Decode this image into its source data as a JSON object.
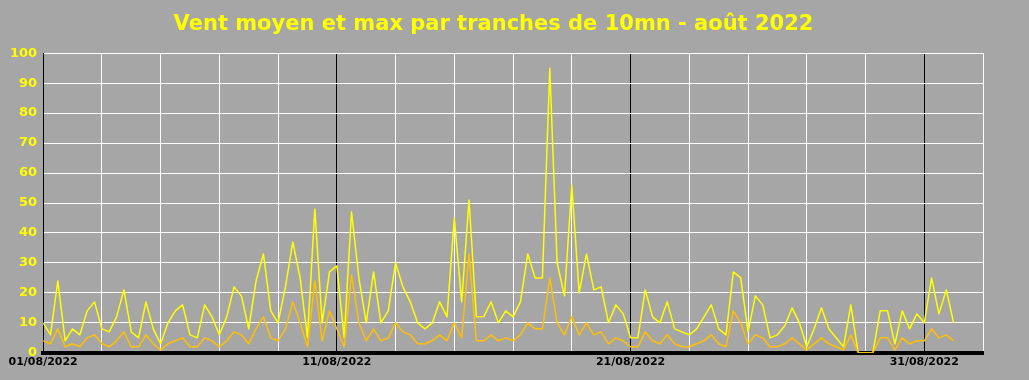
{
  "chart_data": {
    "type": "line",
    "title": "Vent moyen et max par tranches de 10mn - août 2022",
    "x": [
      "2022-08-01T00:00",
      "2022-08-01T06:00",
      "2022-08-01T12:00",
      "2022-08-01T18:00",
      "2022-08-02T00:00",
      "2022-08-02T06:00",
      "2022-08-02T12:00",
      "2022-08-02T18:00",
      "2022-08-03T00:00",
      "2022-08-03T06:00",
      "2022-08-03T12:00",
      "2022-08-03T18:00",
      "2022-08-04T00:00",
      "2022-08-04T06:00",
      "2022-08-04T12:00",
      "2022-08-04T18:00",
      "2022-08-05T00:00",
      "2022-08-05T06:00",
      "2022-08-05T12:00",
      "2022-08-05T18:00",
      "2022-08-06T00:00",
      "2022-08-06T06:00",
      "2022-08-06T12:00",
      "2022-08-06T18:00",
      "2022-08-07T00:00",
      "2022-08-07T06:00",
      "2022-08-07T12:00",
      "2022-08-07T18:00",
      "2022-08-08T00:00",
      "2022-08-08T06:00",
      "2022-08-08T12:00",
      "2022-08-08T18:00",
      "2022-08-09T00:00",
      "2022-08-09T06:00",
      "2022-08-09T12:00",
      "2022-08-09T18:00",
      "2022-08-10T00:00",
      "2022-08-10T06:00",
      "2022-08-10T12:00",
      "2022-08-10T18:00",
      "2022-08-11T00:00",
      "2022-08-11T06:00",
      "2022-08-11T12:00",
      "2022-08-11T18:00",
      "2022-08-12T00:00",
      "2022-08-12T06:00",
      "2022-08-12T12:00",
      "2022-08-12T18:00",
      "2022-08-13T00:00",
      "2022-08-13T06:00",
      "2022-08-13T12:00",
      "2022-08-13T18:00",
      "2022-08-14T00:00",
      "2022-08-14T06:00",
      "2022-08-14T12:00",
      "2022-08-14T18:00",
      "2022-08-15T00:00",
      "2022-08-15T06:00",
      "2022-08-15T12:00",
      "2022-08-15T18:00",
      "2022-08-16T00:00",
      "2022-08-16T06:00",
      "2022-08-16T12:00",
      "2022-08-16T18:00",
      "2022-08-17T00:00",
      "2022-08-17T06:00",
      "2022-08-17T12:00",
      "2022-08-17T18:00",
      "2022-08-18T00:00",
      "2022-08-18T06:00",
      "2022-08-18T12:00",
      "2022-08-18T18:00",
      "2022-08-19T00:00",
      "2022-08-19T06:00",
      "2022-08-19T12:00",
      "2022-08-19T18:00",
      "2022-08-20T00:00",
      "2022-08-20T06:00",
      "2022-08-20T12:00",
      "2022-08-20T18:00",
      "2022-08-21T00:00",
      "2022-08-21T06:00",
      "2022-08-21T12:00",
      "2022-08-21T18:00",
      "2022-08-22T00:00",
      "2022-08-22T06:00",
      "2022-08-22T12:00",
      "2022-08-22T18:00",
      "2022-08-23T00:00",
      "2022-08-23T06:00",
      "2022-08-23T12:00",
      "2022-08-23T18:00",
      "2022-08-24T00:00",
      "2022-08-24T06:00",
      "2022-08-24T12:00",
      "2022-08-24T18:00",
      "2022-08-25T00:00",
      "2022-08-25T06:00",
      "2022-08-25T12:00",
      "2022-08-25T18:00",
      "2022-08-26T00:00",
      "2022-08-26T06:00",
      "2022-08-26T12:00",
      "2022-08-26T18:00",
      "2022-08-27T00:00",
      "2022-08-27T06:00",
      "2022-08-27T12:00",
      "2022-08-27T18:00",
      "2022-08-28T00:00",
      "2022-08-28T06:00",
      "2022-08-28T12:00",
      "2022-08-28T18:00",
      "2022-08-29T00:00",
      "2022-08-29T06:00",
      "2022-08-29T12:00",
      "2022-08-29T18:00",
      "2022-08-30T00:00",
      "2022-08-30T06:00",
      "2022-08-30T12:00",
      "2022-08-30T18:00",
      "2022-08-31T00:00",
      "2022-08-31T06:00",
      "2022-08-31T12:00",
      "2022-08-31T18:00",
      "2022-09-01T00:00"
    ],
    "series": [
      {
        "color": "#ffff00",
        "values": [
          10,
          6,
          24,
          4,
          8,
          6,
          14,
          17,
          8,
          7,
          12,
          21,
          7,
          5,
          17,
          8,
          3,
          10,
          14,
          16,
          6,
          5,
          16,
          12,
          6,
          12,
          22,
          19,
          8,
          24,
          33,
          14,
          10,
          22,
          37,
          25,
          5,
          48,
          10,
          27,
          29,
          5,
          47,
          25,
          10,
          27,
          10,
          14,
          30,
          22,
          17,
          10,
          8,
          10,
          17,
          12,
          45,
          17,
          51,
          12,
          12,
          17,
          10,
          14,
          12,
          17,
          33,
          25,
          25,
          95,
          30,
          19,
          56,
          20,
          33,
          21,
          22,
          10,
          16,
          13,
          5,
          5,
          21,
          12,
          10,
          17,
          8,
          7,
          6,
          8,
          12,
          16,
          8,
          6,
          27,
          25,
          7,
          19,
          16,
          5,
          6,
          9,
          15,
          10,
          2,
          8,
          15,
          8,
          5,
          2,
          16,
          0,
          0,
          0,
          14,
          14,
          3,
          14,
          8,
          13,
          10,
          25,
          13,
          21,
          10
        ]
      },
      {
        "color": "#ffc000",
        "values": [
          4,
          3,
          8,
          2,
          3,
          2,
          5,
          6,
          3,
          2,
          4,
          7,
          2,
          2,
          6,
          3,
          1,
          3,
          4,
          5,
          2,
          2,
          5,
          4,
          2,
          4,
          7,
          6,
          3,
          8,
          12,
          5,
          4,
          8,
          17,
          10,
          2,
          24,
          4,
          14,
          8,
          2,
          26,
          10,
          4,
          8,
          4,
          5,
          10,
          7,
          6,
          3,
          3,
          4,
          6,
          4,
          10,
          5,
          33,
          4,
          4,
          6,
          4,
          5,
          4,
          6,
          10,
          8,
          8,
          25,
          10,
          6,
          12,
          6,
          10,
          6,
          7,
          3,
          5,
          4,
          2,
          2,
          7,
          4,
          3,
          6,
          3,
          2,
          2,
          3,
          4,
          6,
          3,
          2,
          14,
          10,
          3,
          6,
          5,
          2,
          2,
          3,
          5,
          3,
          1,
          3,
          5,
          3,
          2,
          1,
          6,
          0,
          0,
          0,
          5,
          5,
          1,
          5,
          3,
          4,
          4,
          8,
          5,
          6,
          4
        ]
      }
    ],
    "xlim": [
      "2022-08-01",
      "2022-09-02"
    ],
    "xticks": [
      {
        "value": "2022-08-01",
        "label": "01/08/2022"
      },
      {
        "value": "2022-08-03",
        "label": null
      },
      {
        "value": "2022-08-05",
        "label": null
      },
      {
        "value": "2022-08-07",
        "label": null
      },
      {
        "value": "2022-08-09",
        "label": null
      },
      {
        "value": "2022-08-11",
        "label": "11/08/2022"
      },
      {
        "value": "2022-08-13",
        "label": null
      },
      {
        "value": "2022-08-15",
        "label": null
      },
      {
        "value": "2022-08-17",
        "label": null
      },
      {
        "value": "2022-08-19",
        "label": null
      },
      {
        "value": "2022-08-21",
        "label": "21/08/2022"
      },
      {
        "value": "2022-08-23",
        "label": null
      },
      {
        "value": "2022-08-25",
        "label": null
      },
      {
        "value": "2022-08-27",
        "label": null
      },
      {
        "value": "2022-08-29",
        "label": null
      },
      {
        "value": "2022-08-31",
        "label": "31/08/2022"
      },
      {
        "value": "2022-09-02",
        "label": null
      }
    ],
    "ylim": [
      0,
      100
    ],
    "yticks": [
      0,
      10,
      20,
      30,
      40,
      50,
      60,
      70,
      80,
      90,
      100
    ],
    "grid": true,
    "legend": false,
    "marker": "none",
    "line_style": "solid"
  }
}
